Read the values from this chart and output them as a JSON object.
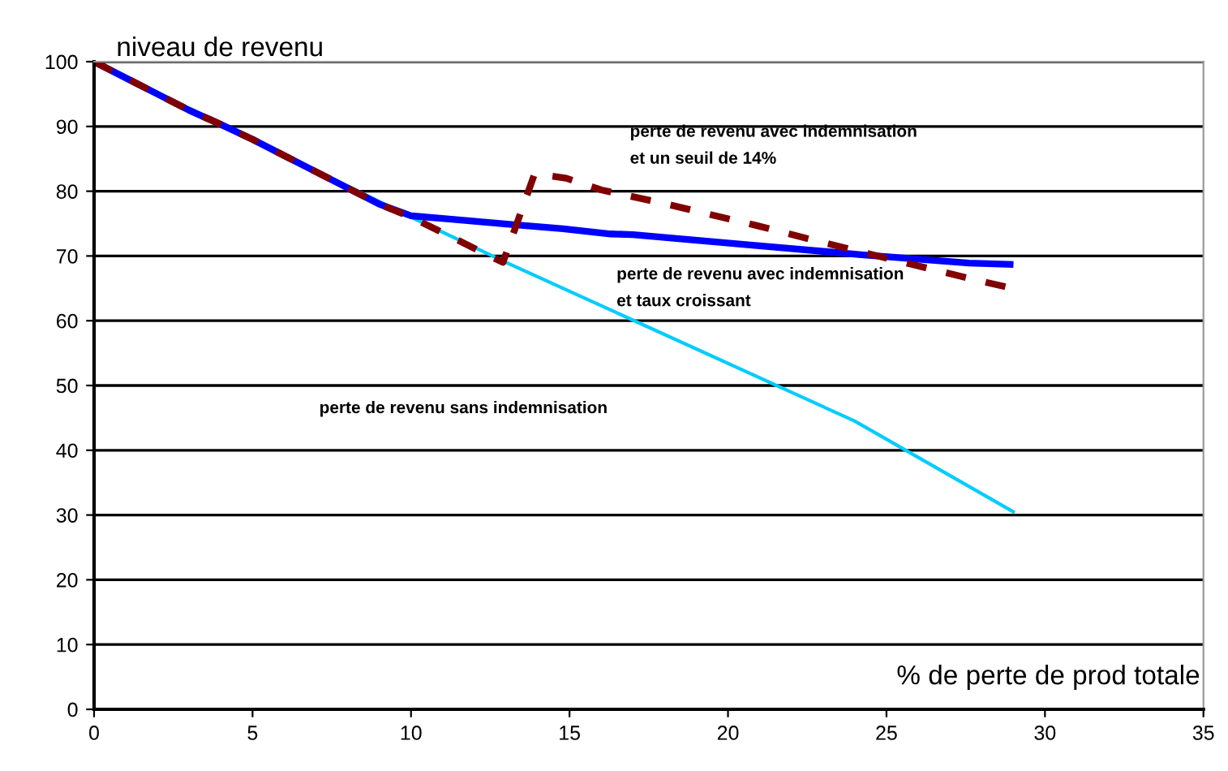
{
  "chart_data": {
    "type": "line",
    "xlabel": "% de perte de prod totale",
    "ylabel": "niveau de revenu",
    "xlim": [
      0,
      35
    ],
    "xticks": [
      0,
      5,
      10,
      15,
      20,
      25,
      30,
      35
    ],
    "ylim": [
      0,
      100
    ],
    "yticks": [
      0,
      10,
      20,
      30,
      40,
      50,
      60,
      70,
      80,
      90,
      100
    ],
    "grid": "y",
    "legend": false,
    "marker": "none",
    "series": [
      {
        "color": "#00ccff",
        "line_style": "solid",
        "x": [
          0,
          10,
          13,
          24,
          29
        ],
        "values": [
          100,
          76,
          69,
          44.5,
          30.5
        ]
      },
      {
        "color": "#800000",
        "line_style": "dashed",
        "x": [
          0,
          1,
          2,
          3,
          4,
          5,
          6,
          7,
          8,
          9,
          10,
          12.9,
          13.9,
          14.9,
          16,
          17.9,
          20.9,
          22.9,
          25.8,
          27.9,
          28.8
        ],
        "values": [
          100,
          97.5,
          95,
          92.5,
          90.3,
          88,
          85.5,
          83,
          80.5,
          78,
          76,
          69,
          82.7,
          82,
          80.2,
          78.2,
          74.7,
          72.2,
          68.7,
          66.2,
          65.2
        ]
      },
      {
        "color": "#0000ff",
        "line_style": "solid",
        "x": [
          0,
          1,
          2,
          3,
          4,
          5,
          6,
          7,
          8,
          9,
          10,
          11.2,
          13.1,
          14.8,
          16.3,
          17,
          20.7,
          24.2,
          27.6,
          28.9
        ],
        "values": [
          100,
          97.5,
          95,
          92.5,
          90.3,
          88,
          85.5,
          83,
          80.5,
          78,
          76.2,
          75.7,
          74.9,
          74.2,
          73.4,
          73.3,
          71.7,
          70.2,
          68.9,
          68.7
        ]
      }
    ],
    "annotations": [
      "perte de revenu avec indemnisation\net un seuil de 14%",
      "perte de revenu avec indemnisation\net taux croissant",
      "perte de revenu sans indemnisation"
    ]
  }
}
